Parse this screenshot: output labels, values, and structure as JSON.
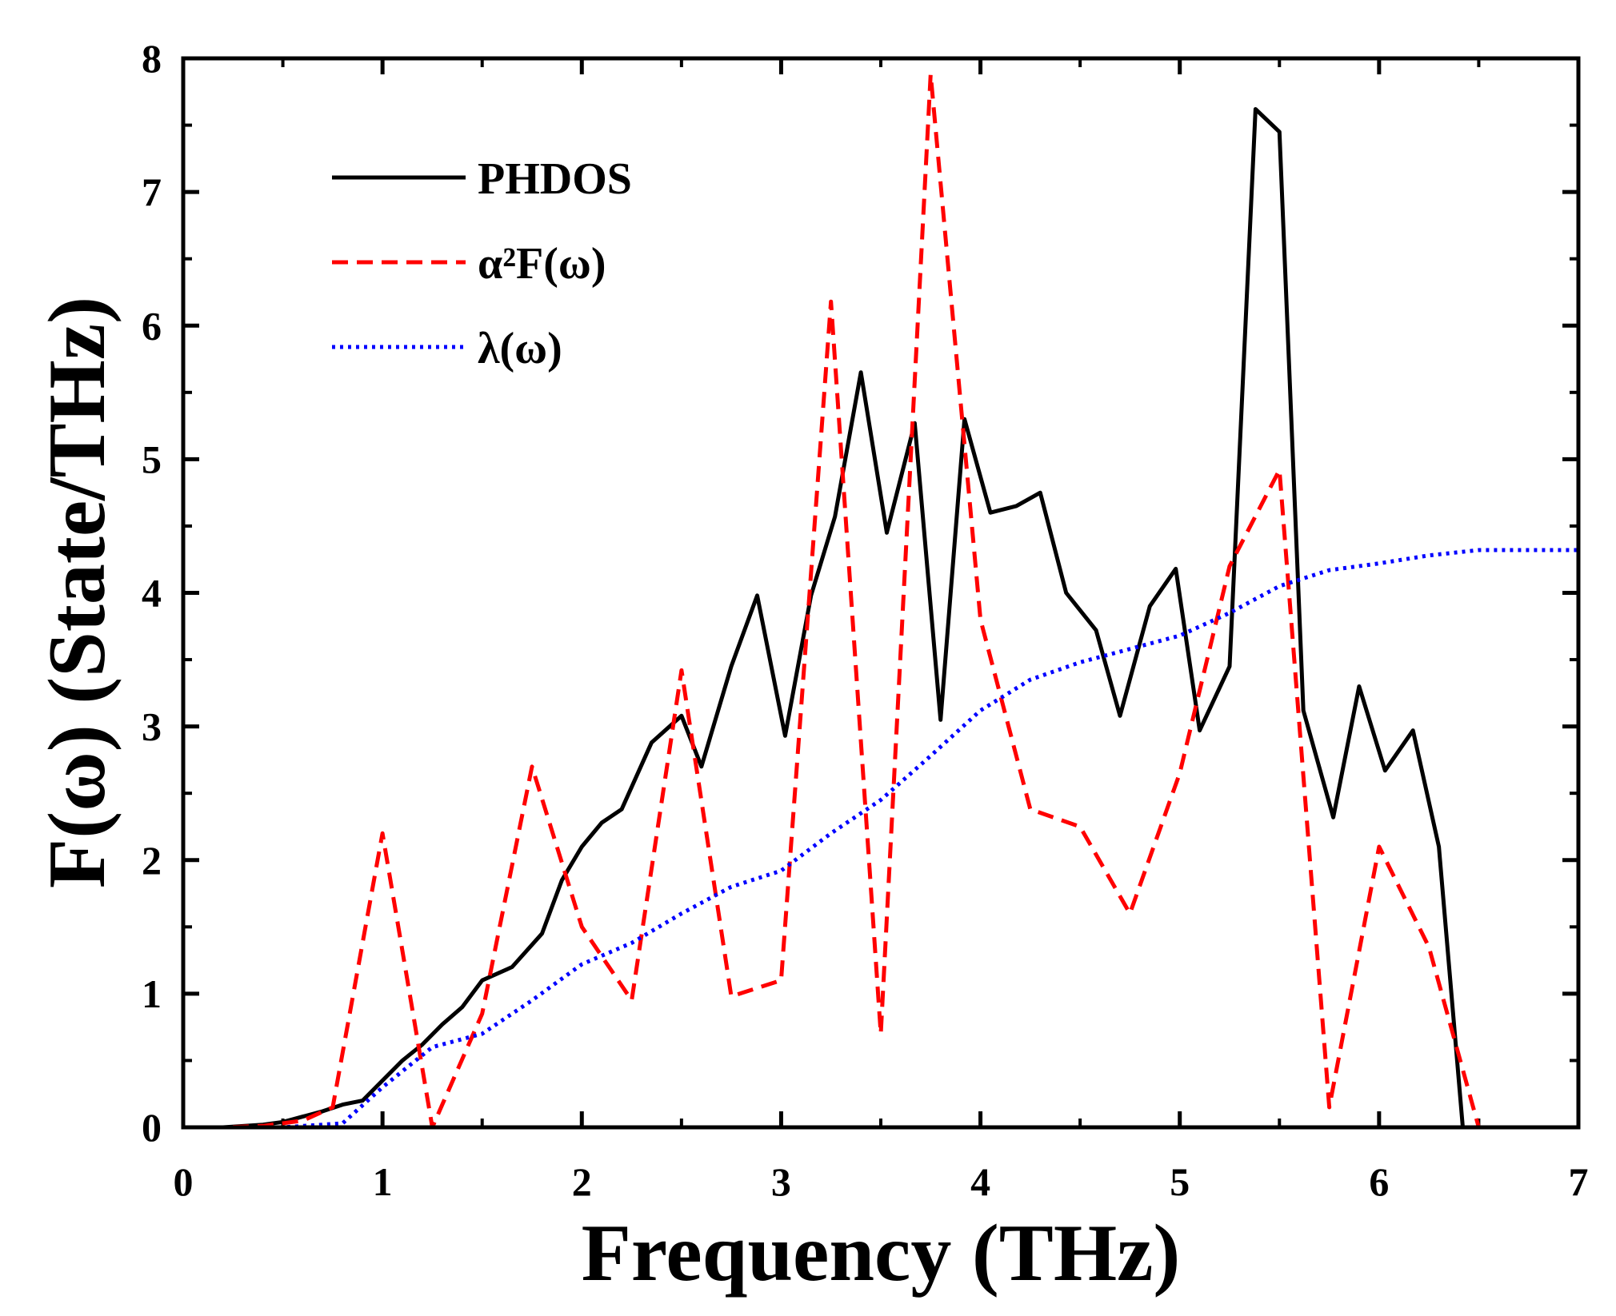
{
  "chart_data": {
    "type": "line",
    "title": "",
    "xlabel": "Frequency (THz)",
    "ylabel": "F(ω) (State/THz)",
    "xlim": [
      0,
      7
    ],
    "ylim": [
      0,
      8
    ],
    "xticks": [
      "0",
      "1",
      "2",
      "3",
      "4",
      "5",
      "6",
      "7"
    ],
    "yticks": [
      "0",
      "1",
      "2",
      "3",
      "4",
      "5",
      "6",
      "7",
      "8"
    ],
    "legend_position": "top-left",
    "series": [
      {
        "name": "PHDOS",
        "color": "#000000",
        "style": "solid",
        "points": [
          [
            0,
            0
          ],
          [
            0.2,
            0
          ],
          [
            0.4,
            0.02
          ],
          [
            0.5,
            0.04
          ],
          [
            0.6,
            0.08
          ],
          [
            0.7,
            0.12
          ],
          [
            0.8,
            0.17
          ],
          [
            0.9,
            0.2
          ],
          [
            1.0,
            0.35
          ],
          [
            1.1,
            0.5
          ],
          [
            1.2,
            0.62
          ],
          [
            1.3,
            0.77
          ],
          [
            1.4,
            0.9
          ],
          [
            1.5,
            1.1
          ],
          [
            1.65,
            1.2
          ],
          [
            1.8,
            1.45
          ],
          [
            1.9,
            1.85
          ],
          [
            2.0,
            2.1
          ],
          [
            2.1,
            2.28
          ],
          [
            2.2,
            2.38
          ],
          [
            2.35,
            2.88
          ],
          [
            2.5,
            3.08
          ],
          [
            2.6,
            2.7
          ],
          [
            2.75,
            3.45
          ],
          [
            2.88,
            3.98
          ],
          [
            3.02,
            2.93
          ],
          [
            3.15,
            3.98
          ],
          [
            3.27,
            4.57
          ],
          [
            3.4,
            5.65
          ],
          [
            3.53,
            4.45
          ],
          [
            3.67,
            5.27
          ],
          [
            3.8,
            3.05
          ],
          [
            3.92,
            5.3
          ],
          [
            4.05,
            4.6
          ],
          [
            4.18,
            4.65
          ],
          [
            4.3,
            4.75
          ],
          [
            4.43,
            4.0
          ],
          [
            4.58,
            3.72
          ],
          [
            4.7,
            3.08
          ],
          [
            4.85,
            3.9
          ],
          [
            4.98,
            4.18
          ],
          [
            5.1,
            2.97
          ],
          [
            5.25,
            3.45
          ],
          [
            5.38,
            7.62
          ],
          [
            5.5,
            7.45
          ],
          [
            5.62,
            3.12
          ],
          [
            5.77,
            2.32
          ],
          [
            5.9,
            3.3
          ],
          [
            6.03,
            2.67
          ],
          [
            6.17,
            2.97
          ],
          [
            6.3,
            2.1
          ],
          [
            6.42,
            0
          ]
        ]
      },
      {
        "name": "α²F(ω)",
        "color": "#ff0000",
        "style": "dashed",
        "points": [
          [
            0,
            0
          ],
          [
            0.2,
            0
          ],
          [
            0.4,
            0.01
          ],
          [
            0.6,
            0.05
          ],
          [
            0.75,
            0.15
          ],
          [
            1.0,
            2.2
          ],
          [
            1.25,
            0.0
          ],
          [
            1.5,
            0.85
          ],
          [
            1.75,
            2.7
          ],
          [
            2.0,
            1.5
          ],
          [
            2.25,
            0.95
          ],
          [
            2.5,
            3.42
          ],
          [
            2.75,
            0.98
          ],
          [
            3.0,
            1.1
          ],
          [
            3.25,
            6.18
          ],
          [
            3.5,
            0.7
          ],
          [
            3.75,
            7.88
          ],
          [
            4.0,
            3.8
          ],
          [
            4.25,
            2.38
          ],
          [
            4.5,
            2.25
          ],
          [
            4.75,
            1.6
          ],
          [
            5.0,
            2.65
          ],
          [
            5.25,
            4.2
          ],
          [
            5.5,
            4.92
          ],
          [
            5.75,
            0.15
          ],
          [
            6.0,
            2.1
          ],
          [
            6.25,
            1.35
          ],
          [
            6.5,
            0
          ],
          [
            7.0,
            0
          ]
        ]
      },
      {
        "name": "λ(ω)",
        "color": "#0000ff",
        "style": "dotted",
        "points": [
          [
            0,
            0
          ],
          [
            0.5,
            0
          ],
          [
            0.8,
            0.03
          ],
          [
            1.0,
            0.3
          ],
          [
            1.25,
            0.6
          ],
          [
            1.5,
            0.7
          ],
          [
            1.75,
            0.95
          ],
          [
            2.0,
            1.22
          ],
          [
            2.25,
            1.38
          ],
          [
            2.5,
            1.6
          ],
          [
            2.75,
            1.8
          ],
          [
            3.0,
            1.92
          ],
          [
            3.25,
            2.2
          ],
          [
            3.5,
            2.45
          ],
          [
            3.75,
            2.78
          ],
          [
            4.0,
            3.12
          ],
          [
            4.25,
            3.35
          ],
          [
            4.5,
            3.48
          ],
          [
            4.75,
            3.58
          ],
          [
            5.0,
            3.68
          ],
          [
            5.25,
            3.85
          ],
          [
            5.5,
            4.05
          ],
          [
            5.75,
            4.17
          ],
          [
            6.0,
            4.22
          ],
          [
            6.25,
            4.28
          ],
          [
            6.5,
            4.32
          ],
          [
            7.0,
            4.32
          ]
        ]
      }
    ]
  }
}
